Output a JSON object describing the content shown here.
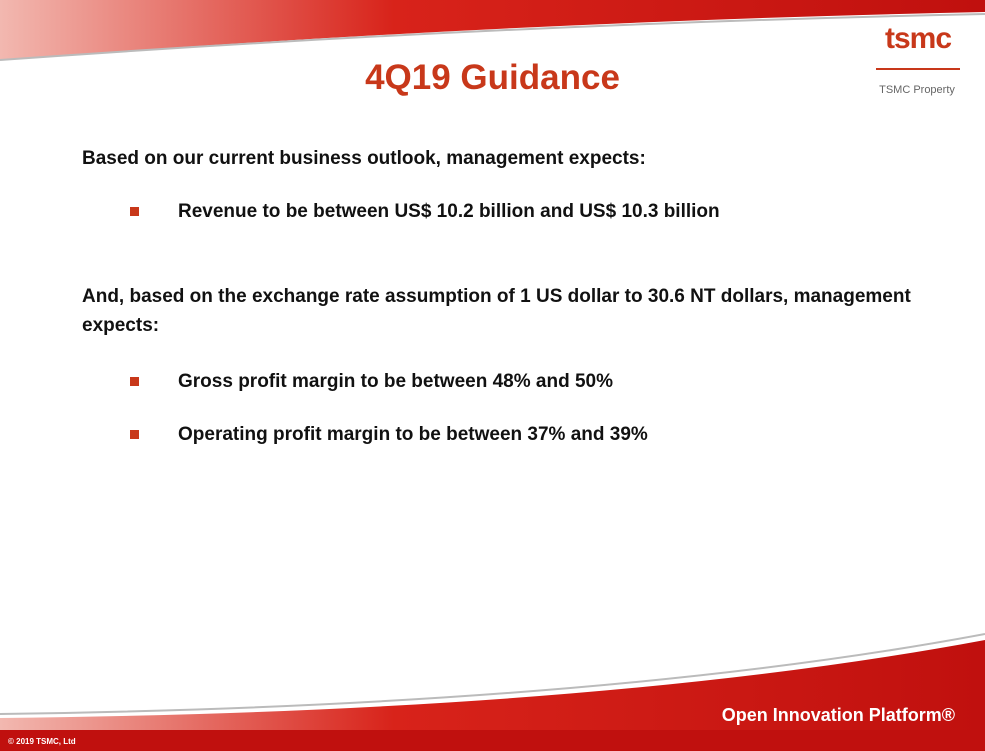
{
  "header": {
    "title": "4Q19 Guidance",
    "logo": "tsmc",
    "property": "TSMC Property"
  },
  "body": {
    "intro1": "Based on our current business outlook, management expects:",
    "bullets1": [
      "Revenue to be between US$ 10.2 billion and US$ 10.3 billion"
    ],
    "intro2": "And, based on the exchange rate assumption of 1 US dollar to 30.6 NT dollars, management expects:",
    "bullets2": [
      "Gross profit margin to be between 48% and 50%",
      "Operating profit margin to be between 37% and 39%"
    ]
  },
  "footer": {
    "copyright": "© 2019 TSMC, Ltd",
    "tagline": "Open Innovation Platform®"
  }
}
